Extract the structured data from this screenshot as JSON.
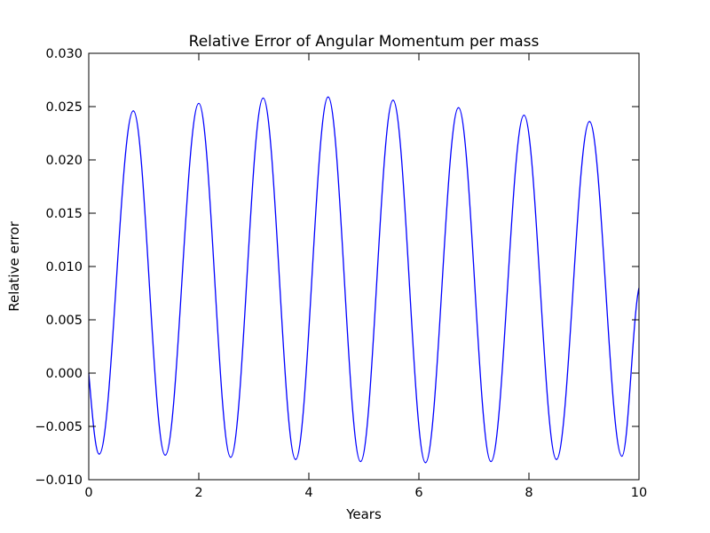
{
  "chart_data": {
    "type": "line",
    "title": "Relative Error of Angular Momentum per mass",
    "xlabel": "Years",
    "ylabel": "Relative error",
    "xlim": [
      0,
      10
    ],
    "ylim": [
      -0.01,
      0.03
    ],
    "xticks": [
      0,
      2,
      4,
      6,
      8,
      10
    ],
    "xtick_labels": [
      "0",
      "2",
      "4",
      "6",
      "8",
      "10"
    ],
    "yticks": [
      -0.01,
      -0.005,
      0.0,
      0.005,
      0.01,
      0.015,
      0.02,
      0.025,
      0.03
    ],
    "ytick_labels": [
      "−0.010",
      "−0.005",
      "0.000",
      "0.005",
      "0.010",
      "0.015",
      "0.020",
      "0.025",
      "0.030"
    ],
    "grid": false,
    "legend": "none",
    "series": [
      {
        "color": "#0000ff",
        "x": [
          0.0,
          0.19,
          0.81,
          1.39,
          2.0,
          2.58,
          3.17,
          3.76,
          4.35,
          4.94,
          5.53,
          6.12,
          6.72,
          7.31,
          7.91,
          8.5,
          9.1,
          9.69,
          10.0
        ],
        "y": [
          0.0,
          -0.0076,
          0.0246,
          -0.0077,
          0.0253,
          -0.0079,
          0.0258,
          -0.0081,
          0.0259,
          -0.0083,
          0.0256,
          -0.0084,
          0.0249,
          -0.0083,
          0.0242,
          -0.0081,
          0.0236,
          -0.0078,
          0.008
        ]
      }
    ]
  }
}
